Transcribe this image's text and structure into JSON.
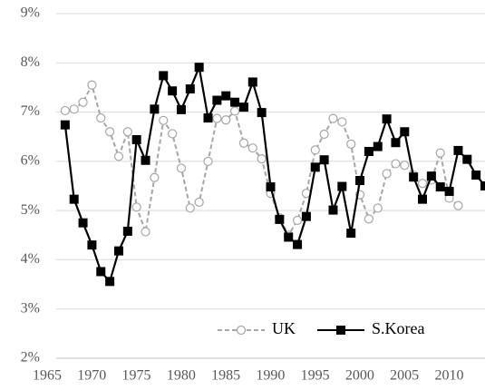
{
  "chart_data": {
    "type": "line",
    "x": [
      1966,
      1967,
      1968,
      1969,
      1970,
      1971,
      1972,
      1973,
      1974,
      1975,
      1976,
      1977,
      1978,
      1979,
      1980,
      1981,
      1982,
      1983,
      1984,
      1985,
      1986,
      1987,
      1988,
      1989,
      1990,
      1991,
      1992,
      1993,
      1994,
      1995,
      1996,
      1997,
      1998,
      1999,
      2000,
      2001,
      2002,
      2003,
      2004,
      2005,
      2006,
      2007,
      2008,
      2009,
      2010,
      2011,
      2012,
      2013
    ],
    "series": [
      {
        "name": "UK",
        "color": "#a6a6a6",
        "dash": true,
        "marker": "circle",
        "values": [
          7.03,
          7.06,
          7.2,
          7.55,
          6.88,
          6.6,
          6.1,
          6.6,
          5.07,
          4.57,
          5.67,
          6.83,
          6.56,
          5.86,
          5.05,
          5.17,
          6.0,
          6.87,
          6.84,
          7.02,
          6.37,
          6.27,
          6.05,
          5.35,
          4.85,
          4.5,
          4.8,
          5.35,
          6.23,
          6.55,
          6.87,
          6.8,
          6.35,
          5.32,
          4.83,
          5.05,
          5.75,
          5.95,
          5.92,
          5.72,
          5.55,
          5.62,
          6.17,
          5.25,
          5.1,
          null,
          null,
          null
        ]
      },
      {
        "name": "S.Korea",
        "color": "#000000",
        "dash": false,
        "marker": "square",
        "values": [
          6.74,
          5.23,
          4.75,
          4.3,
          3.76,
          3.56,
          4.18,
          4.58,
          6.44,
          6.02,
          7.06,
          7.74,
          7.43,
          7.05,
          7.47,
          7.91,
          6.88,
          7.24,
          7.33,
          7.2,
          7.1,
          7.61,
          6.99,
          5.48,
          4.82,
          4.46,
          4.31,
          4.88,
          5.88,
          6.03,
          5.01,
          5.49,
          4.54,
          5.61,
          6.2,
          6.3,
          6.86,
          6.38,
          6.6,
          5.68,
          5.23,
          5.7,
          5.48,
          5.39,
          6.22,
          6.04,
          5.72,
          5.5
        ]
      }
    ],
    "xlim": [
      1965,
      2013
    ],
    "xticks": [
      1965,
      1970,
      1975,
      1980,
      1985,
      1990,
      1995,
      2000,
      2005,
      2010
    ],
    "ylim": [
      2,
      9
    ],
    "yticks": [
      {
        "value": 2,
        "label": "2%"
      },
      {
        "value": 3,
        "label": "3%"
      },
      {
        "value": 4,
        "label": "4%"
      },
      {
        "value": 5,
        "label": "5%"
      },
      {
        "value": 6,
        "label": "6%"
      },
      {
        "value": 7,
        "label": "7%"
      },
      {
        "value": 8,
        "label": "8%"
      },
      {
        "value": 9,
        "label": "9%"
      }
    ],
    "grid": true,
    "legend": "bottom-right"
  }
}
